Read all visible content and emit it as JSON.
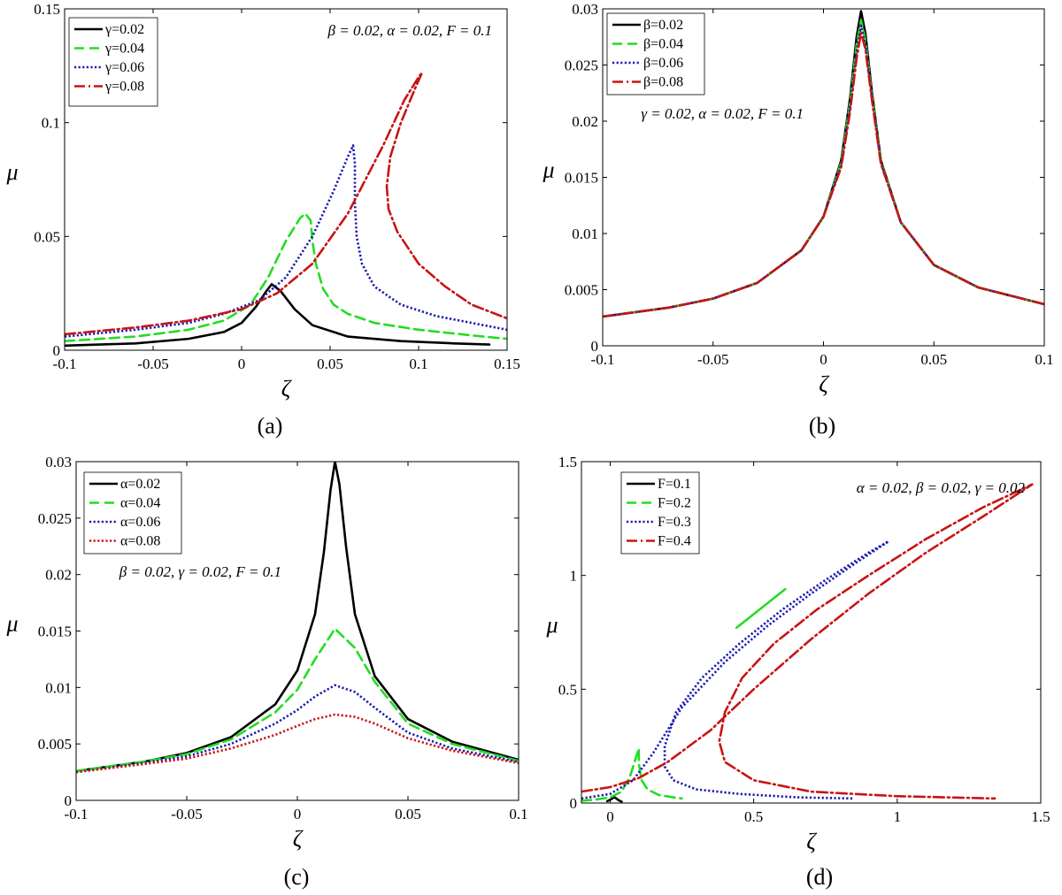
{
  "colors": {
    "black": "#000000",
    "green": "#22dd22",
    "blue": "#1a1ab0",
    "red": "#c81414"
  },
  "chart_data": [
    {
      "id": "a",
      "type": "line",
      "caption": "(a)",
      "xlabel": "ζ",
      "ylabel": "μ",
      "annotation": "β = 0.02, α = 0.02, F = 0.1",
      "xlim": [
        -0.1,
        0.15
      ],
      "ylim": [
        0,
        0.15
      ],
      "xticks": [
        -0.1,
        -0.05,
        0,
        0.05,
        0.1,
        0.15
      ],
      "xtick_labels": [
        "-0.1",
        "-0.05",
        "0",
        "0.05",
        "0.1",
        "0.15"
      ],
      "yticks": [
        0,
        0.05,
        0.1,
        0.15
      ],
      "ytick_labels": [
        "0",
        "0.05",
        "0.1",
        "0.15"
      ],
      "legend_position": "top-left",
      "series": [
        {
          "name": "γ=0.02",
          "color": "#000000",
          "style": "solid",
          "x": [
            -0.1,
            -0.06,
            -0.03,
            -0.01,
            0.0,
            0.008,
            0.014,
            0.017,
            0.022,
            0.03,
            0.04,
            0.06,
            0.09,
            0.12,
            0.14
          ],
          "y": [
            0.002,
            0.003,
            0.005,
            0.008,
            0.012,
            0.019,
            0.026,
            0.029,
            0.026,
            0.018,
            0.011,
            0.006,
            0.004,
            0.003,
            0.0025
          ]
        },
        {
          "name": "γ=0.04",
          "color": "#22dd22",
          "style": "dashed",
          "x": [
            -0.1,
            -0.06,
            -0.03,
            -0.01,
            0.005,
            0.015,
            0.025,
            0.033,
            0.036,
            0.039,
            0.04,
            0.042,
            0.046,
            0.052,
            0.06,
            0.075,
            0.1,
            0.13,
            0.15
          ],
          "y": [
            0.004,
            0.006,
            0.009,
            0.013,
            0.02,
            0.032,
            0.048,
            0.058,
            0.06,
            0.057,
            0.048,
            0.038,
            0.027,
            0.02,
            0.016,
            0.012,
            0.009,
            0.0065,
            0.005
          ]
        },
        {
          "name": "γ=0.06",
          "color": "#1a1ab0",
          "style": "dotted",
          "x": [
            -0.1,
            -0.06,
            -0.03,
            -0.01,
            0.01,
            0.025,
            0.04,
            0.052,
            0.06,
            0.063,
            0.064,
            0.064,
            0.065,
            0.068,
            0.075,
            0.09,
            0.11,
            0.13,
            0.15
          ],
          "y": [
            0.006,
            0.009,
            0.012,
            0.016,
            0.022,
            0.032,
            0.05,
            0.07,
            0.085,
            0.09,
            0.082,
            0.065,
            0.05,
            0.038,
            0.028,
            0.02,
            0.015,
            0.012,
            0.009
          ]
        },
        {
          "name": "γ=0.08",
          "color": "#c81414",
          "style": "dashdot",
          "x": [
            -0.1,
            -0.06,
            -0.03,
            0.0,
            0.02,
            0.04,
            0.06,
            0.08,
            0.092,
            0.1,
            0.102,
            0.098,
            0.09,
            0.084,
            0.082,
            0.083,
            0.088,
            0.1,
            0.115,
            0.13,
            0.15
          ],
          "y": [
            0.007,
            0.01,
            0.013,
            0.018,
            0.025,
            0.038,
            0.06,
            0.09,
            0.11,
            0.12,
            0.122,
            0.115,
            0.1,
            0.085,
            0.072,
            0.062,
            0.052,
            0.038,
            0.028,
            0.02,
            0.014
          ]
        }
      ]
    },
    {
      "id": "b",
      "type": "line",
      "caption": "(b)",
      "xlabel": "ζ",
      "ylabel": "μ",
      "annotation": "γ = 0.02, α = 0.02, F = 0.1",
      "xlim": [
        -0.1,
        0.1
      ],
      "ylim": [
        0,
        0.03
      ],
      "xticks": [
        -0.1,
        -0.05,
        0,
        0.05,
        0.1
      ],
      "xtick_labels": [
        "-0.1",
        "-0.05",
        "0",
        "0.05",
        "0.1"
      ],
      "yticks": [
        0,
        0.005,
        0.01,
        0.015,
        0.02,
        0.025,
        0.03
      ],
      "ytick_labels": [
        "0",
        "0.005",
        "0.01",
        "0.015",
        "0.02",
        "0.025",
        "0.03"
      ],
      "legend_position": "top-left",
      "series": [
        {
          "name": "β=0.02",
          "color": "#000000",
          "style": "solid",
          "x": [
            -0.1,
            -0.07,
            -0.05,
            -0.03,
            -0.01,
            0.0,
            0.008,
            0.012,
            0.015,
            0.017,
            0.019,
            0.022,
            0.026,
            0.035,
            0.05,
            0.07,
            0.1
          ],
          "y": [
            0.0026,
            0.0034,
            0.0042,
            0.0056,
            0.0085,
            0.0115,
            0.0165,
            0.022,
            0.0275,
            0.0298,
            0.0278,
            0.0225,
            0.0165,
            0.011,
            0.0072,
            0.0052,
            0.0037
          ]
        },
        {
          "name": "β=0.04",
          "color": "#22dd22",
          "style": "dashed",
          "x": [
            -0.1,
            -0.07,
            -0.05,
            -0.03,
            -0.01,
            0.0,
            0.008,
            0.012,
            0.015,
            0.017,
            0.019,
            0.022,
            0.026,
            0.035,
            0.05,
            0.07,
            0.1
          ],
          "y": [
            0.0026,
            0.0034,
            0.0042,
            0.0056,
            0.0085,
            0.0115,
            0.0163,
            0.0216,
            0.0268,
            0.029,
            0.0272,
            0.0222,
            0.0164,
            0.011,
            0.0072,
            0.0052,
            0.0037
          ]
        },
        {
          "name": "β=0.06",
          "color": "#1a1ab0",
          "style": "dotted",
          "x": [
            -0.1,
            -0.07,
            -0.05,
            -0.03,
            -0.01,
            0.0,
            0.008,
            0.012,
            0.015,
            0.017,
            0.019,
            0.022,
            0.026,
            0.035,
            0.05,
            0.07,
            0.1
          ],
          "y": [
            0.0026,
            0.0034,
            0.0042,
            0.0056,
            0.0085,
            0.0115,
            0.0161,
            0.0212,
            0.0262,
            0.0285,
            0.0268,
            0.022,
            0.0163,
            0.011,
            0.0072,
            0.0052,
            0.0037
          ]
        },
        {
          "name": "β=0.08",
          "color": "#c81414",
          "style": "dashdot",
          "x": [
            -0.1,
            -0.07,
            -0.05,
            -0.03,
            -0.01,
            0.0,
            0.008,
            0.012,
            0.015,
            0.017,
            0.019,
            0.022,
            0.026,
            0.035,
            0.05,
            0.07,
            0.1
          ],
          "y": [
            0.0026,
            0.0034,
            0.0042,
            0.0056,
            0.0085,
            0.0115,
            0.0159,
            0.0208,
            0.0256,
            0.0279,
            0.0264,
            0.0218,
            0.0162,
            0.011,
            0.0072,
            0.0052,
            0.0037
          ]
        }
      ]
    },
    {
      "id": "c",
      "type": "line",
      "caption": "(c)",
      "xlabel": "ζ",
      "ylabel": "μ",
      "annotation": "β = 0.02, γ = 0.02, F = 0.1",
      "xlim": [
        -0.1,
        0.1
      ],
      "ylim": [
        0,
        0.03
      ],
      "xticks": [
        -0.1,
        -0.05,
        0,
        0.05,
        0.1
      ],
      "xtick_labels": [
        "-0.1",
        "-0.05",
        "0",
        "0.05",
        "0.1"
      ],
      "yticks": [
        0,
        0.005,
        0.01,
        0.015,
        0.02,
        0.025,
        0.03
      ],
      "ytick_labels": [
        "0",
        "0.005",
        "0.01",
        "0.015",
        "0.02",
        "0.025",
        "0.03"
      ],
      "legend_position": "top-left",
      "series": [
        {
          "name": "α=0.02",
          "color": "#000000",
          "style": "solid",
          "x": [
            -0.1,
            -0.07,
            -0.05,
            -0.03,
            -0.01,
            0.0,
            0.008,
            0.012,
            0.015,
            0.017,
            0.019,
            0.022,
            0.026,
            0.035,
            0.05,
            0.07,
            0.1
          ],
          "y": [
            0.0026,
            0.0034,
            0.0042,
            0.0056,
            0.0085,
            0.0115,
            0.0165,
            0.022,
            0.0275,
            0.03,
            0.028,
            0.0225,
            0.0165,
            0.011,
            0.0072,
            0.0052,
            0.0036
          ]
        },
        {
          "name": "α=0.04",
          "color": "#22dd22",
          "style": "dashed",
          "x": [
            -0.1,
            -0.07,
            -0.05,
            -0.03,
            -0.01,
            0.0,
            0.008,
            0.017,
            0.026,
            0.035,
            0.05,
            0.07,
            0.1
          ],
          "y": [
            0.0026,
            0.0034,
            0.0041,
            0.0054,
            0.0078,
            0.0098,
            0.0125,
            0.0152,
            0.0135,
            0.0105,
            0.0068,
            0.005,
            0.0035
          ]
        },
        {
          "name": "α=0.06",
          "color": "#1a1ab0",
          "style": "dotted",
          "x": [
            -0.1,
            -0.07,
            -0.05,
            -0.03,
            -0.01,
            0.0,
            0.008,
            0.017,
            0.026,
            0.035,
            0.05,
            0.07,
            0.1
          ],
          "y": [
            0.0025,
            0.0033,
            0.0039,
            0.005,
            0.0068,
            0.008,
            0.0092,
            0.0102,
            0.0096,
            0.0082,
            0.006,
            0.0046,
            0.0034
          ]
        },
        {
          "name": "α=0.08",
          "color": "#c81414",
          "style": "dotted",
          "x": [
            -0.1,
            -0.07,
            -0.05,
            -0.03,
            -0.01,
            0.0,
            0.008,
            0.017,
            0.026,
            0.035,
            0.05,
            0.07,
            0.1
          ],
          "y": [
            0.0025,
            0.0032,
            0.0037,
            0.0046,
            0.0058,
            0.0066,
            0.0072,
            0.0076,
            0.0074,
            0.0068,
            0.0055,
            0.0044,
            0.0033
          ]
        }
      ]
    },
    {
      "id": "d",
      "type": "line",
      "caption": "(d)",
      "xlabel": "ζ",
      "ylabel": "μ",
      "annotation": "α = 0.02, β = 0.02, γ = 0.02",
      "xlim": [
        -0.1,
        1.5
      ],
      "ylim": [
        0,
        1.5
      ],
      "xticks": [
        0,
        0.5,
        1,
        1.5
      ],
      "xtick_labels": [
        "0",
        "0.5",
        "1",
        "1.5"
      ],
      "yticks": [
        0,
        0.5,
        1,
        1.5
      ],
      "ytick_labels": [
        "0",
        "0.5",
        "1",
        "1.5"
      ],
      "legend_position": "top-left",
      "series": [
        {
          "name": "F=0.1",
          "color": "#000000",
          "style": "solid",
          "x": [
            -0.01,
            0.005,
            0.015,
            0.03,
            0.04
          ],
          "y": [
            0.008,
            0.018,
            0.026,
            0.012,
            0.006
          ]
        },
        {
          "name": "F=0.2",
          "color": "#22dd22",
          "style": "dashed",
          "x": [
            -0.1,
            -0.05,
            0.0,
            0.04,
            0.07,
            0.09,
            0.1,
            0.1,
            0.11,
            0.13,
            0.17,
            0.22,
            0.25
          ],
          "y": [
            0.01,
            0.015,
            0.025,
            0.05,
            0.12,
            0.2,
            0.24,
            0.17,
            0.1,
            0.06,
            0.035,
            0.025,
            0.02
          ]
        },
        {
          "name": "F=0.3",
          "color": "#1a1ab0",
          "style": "dotted",
          "x": [
            -0.1,
            0.0,
            0.08,
            0.15,
            0.25,
            0.4,
            0.55,
            0.7,
            0.85,
            0.97,
            0.9,
            0.75,
            0.6,
            0.45,
            0.32,
            0.23,
            0.19,
            0.19,
            0.22,
            0.3,
            0.45,
            0.65,
            0.85
          ],
          "y": [
            0.02,
            0.04,
            0.1,
            0.22,
            0.42,
            0.62,
            0.78,
            0.92,
            1.05,
            1.15,
            1.1,
            0.98,
            0.85,
            0.7,
            0.55,
            0.4,
            0.25,
            0.16,
            0.1,
            0.06,
            0.04,
            0.025,
            0.02
          ]
        },
        {
          "name": "F=0.4",
          "color": "#c81414",
          "style": "dashdot",
          "x": [
            -0.1,
            0.0,
            0.1,
            0.2,
            0.35,
            0.5,
            0.7,
            0.9,
            1.1,
            1.3,
            1.47,
            1.3,
            1.1,
            0.9,
            0.72,
            0.57,
            0.46,
            0.4,
            0.38,
            0.4,
            0.5,
            0.7,
            1.0,
            1.34
          ],
          "y": [
            0.05,
            0.07,
            0.11,
            0.18,
            0.32,
            0.5,
            0.72,
            0.92,
            1.1,
            1.26,
            1.4,
            1.3,
            1.16,
            1.0,
            0.85,
            0.7,
            0.55,
            0.4,
            0.27,
            0.18,
            0.1,
            0.05,
            0.03,
            0.02
          ]
        },
        {
          "name": "",
          "color": "#22dd22",
          "style": "solid",
          "x": [
            0.44,
            0.61
          ],
          "y": [
            0.77,
            0.94
          ]
        }
      ]
    }
  ]
}
